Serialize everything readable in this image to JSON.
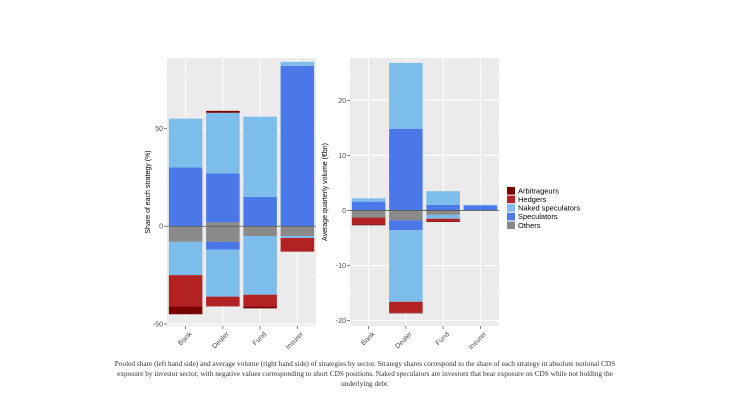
{
  "chart_data": [
    {
      "type": "stacked-bar",
      "ylabel": "Share of each strategy (%)",
      "ylim": [
        -51,
        86
      ],
      "yticks": [
        -50,
        0,
        50
      ],
      "categories": [
        "Bank",
        "Dealer",
        "Fund",
        "Insurer"
      ],
      "series": [
        {
          "name": "Others",
          "color": "#8a8a8a",
          "pos": [
            0,
            2,
            0,
            0
          ],
          "neg": [
            -8,
            -8,
            -5,
            -5
          ]
        },
        {
          "name": "Speculators",
          "color": "#4a78e8",
          "pos": [
            30,
            25,
            15,
            82
          ],
          "neg": [
            0,
            -4,
            0,
            0
          ]
        },
        {
          "name": "Naked speculators",
          "color": "#7dbdec",
          "pos": [
            25,
            31,
            41,
            2
          ],
          "neg": [
            -17,
            -24,
            -30,
            -1
          ]
        },
        {
          "name": "Hedgers",
          "color": "#b22222",
          "pos": [
            0,
            0,
            0,
            0
          ],
          "neg": [
            -16,
            -5,
            -6,
            -7
          ]
        },
        {
          "name": "Arbitrageurs",
          "color": "#7a0000",
          "pos": [
            0,
            1,
            0,
            0
          ],
          "neg": [
            -4,
            0,
            -1,
            0
          ]
        }
      ]
    },
    {
      "type": "stacked-bar",
      "ylabel": "Average quarterly volume (€bn)",
      "ylim": [
        -21,
        27.7
      ],
      "yticks": [
        -20,
        -10,
        0,
        10,
        20
      ],
      "categories": [
        "Bank",
        "Dealer",
        "Fund",
        "Insurer"
      ],
      "series": [
        {
          "name": "Others",
          "color": "#8a8a8a",
          "pos": [
            0,
            0,
            0,
            0
          ],
          "neg": [
            -1.3,
            -1.8,
            -0.8,
            0
          ]
        },
        {
          "name": "Speculators",
          "color": "#4a78e8",
          "pos": [
            1.6,
            14.8,
            1.0,
            0.9
          ],
          "neg": [
            0,
            -1.8,
            0,
            0
          ]
        },
        {
          "name": "Naked speculators",
          "color": "#7dbdec",
          "pos": [
            0.6,
            12.0,
            2.5,
            0.1
          ],
          "neg": [
            0,
            -13.0,
            -0.7,
            0
          ]
        },
        {
          "name": "Hedgers",
          "color": "#b22222",
          "pos": [
            0,
            0,
            0,
            0
          ],
          "neg": [
            -1.2,
            -2.0,
            -0.5,
            0
          ]
        },
        {
          "name": "Arbitrageurs",
          "color": "#7a0000",
          "pos": [
            0,
            0,
            0,
            0
          ],
          "neg": [
            -0.2,
            -0.1,
            -0.1,
            0
          ]
        }
      ]
    }
  ],
  "legend": {
    "items": [
      {
        "label": "Arbitrageurs",
        "color": "#7a0000"
      },
      {
        "label": "Hedgers",
        "color": "#b22222"
      },
      {
        "label": "Naked speculators",
        "color": "#7dbdec"
      },
      {
        "label": "Speculators",
        "color": "#4a78e8"
      },
      {
        "label": "Others",
        "color": "#8a8a8a"
      }
    ]
  },
  "caption": "Pooled share (left hand side) and average volume (right hand side) of strategies by sector. Strategy shares correspond to the share of each strategy in absolute notional CDS exposure by investor sector, with negative values corresponding to short CDS positions. Naked speculators are investors that bear exposure on CDS while not holding the underlying debt."
}
